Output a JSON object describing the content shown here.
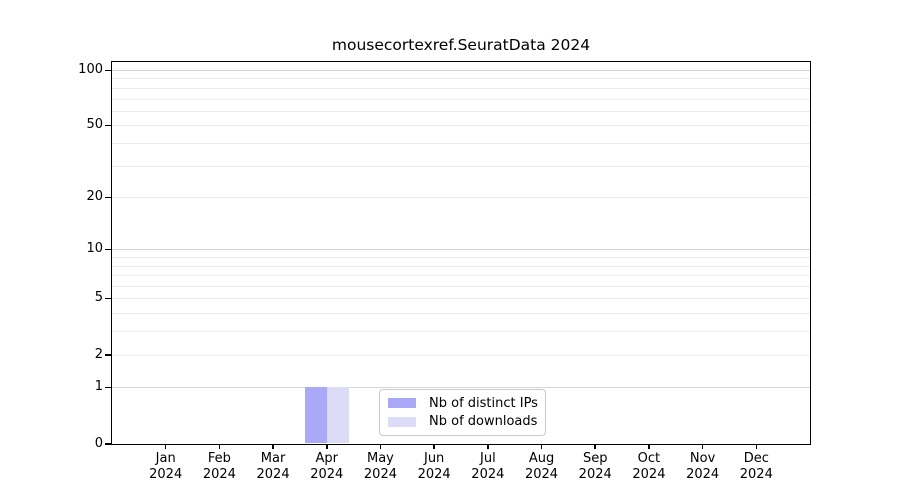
{
  "chart_data": {
    "type": "bar",
    "title": "mousecortexref.SeuratData 2024",
    "categories": [
      "Jan 2024",
      "Feb 2024",
      "Mar 2024",
      "Apr 2024",
      "May 2024",
      "Jun 2024",
      "Jul 2024",
      "Aug 2024",
      "Sep 2024",
      "Oct 2024",
      "Nov 2024",
      "Dec 2024"
    ],
    "x_tick_months": [
      "Jan",
      "Feb",
      "Mar",
      "Apr",
      "May",
      "Jun",
      "Jul",
      "Aug",
      "Sep",
      "Oct",
      "Nov",
      "Dec"
    ],
    "x_tick_year": "2024",
    "series": [
      {
        "name": "Nb of distinct IPs",
        "color": "#a9a9f8",
        "values": [
          0,
          0,
          0,
          1,
          0,
          0,
          0,
          0,
          0,
          0,
          0,
          0
        ]
      },
      {
        "name": "Nb of downloads",
        "color": "#dcdcf8",
        "values": [
          0,
          0,
          0,
          1,
          0,
          0,
          0,
          0,
          0,
          0,
          0,
          0
        ]
      }
    ],
    "yticks": [
      0,
      1,
      2,
      5,
      10,
      20,
      50,
      100
    ],
    "minor_grid_values": [
      2,
      3,
      4,
      5,
      6,
      7,
      8,
      9,
      20,
      30,
      40,
      50,
      60,
      70,
      80,
      90
    ],
    "major_grid_values": [
      1,
      10,
      100
    ],
    "ylim": [
      0,
      110
    ],
    "yscale": "log1p",
    "grid": "horizontal",
    "legend_position": "inside-lower-center",
    "colors": {
      "bar_distinct_ips": "#a9a9f8",
      "bar_downloads": "#dcdcf8",
      "major_grid": "#d6d6d6",
      "minor_grid": "#ebebeb",
      "spine": "#000000",
      "background": "#ffffff"
    }
  }
}
